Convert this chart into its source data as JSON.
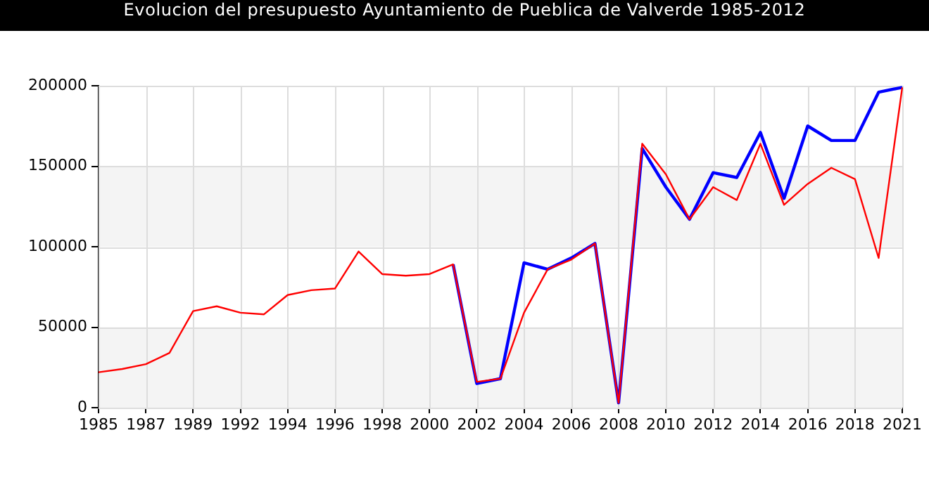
{
  "chart_data": {
    "type": "line",
    "title": "Evolucion del presupuesto Ayuntamiento de Pueblica de Valverde 1985-2012",
    "categories": [
      "1985",
      null,
      "1987",
      null,
      "1989",
      null,
      "1992",
      null,
      "1994",
      null,
      "1996",
      null,
      "1998",
      null,
      "2000",
      null,
      "2002",
      null,
      "2004",
      null,
      "2006",
      null,
      "2008",
      null,
      "2010",
      null,
      "2012",
      null,
      "2014",
      null,
      "2016",
      null,
      "2018",
      null,
      "2021"
    ],
    "series": [
      {
        "color": "#0000ff",
        "values": [
          null,
          null,
          null,
          null,
          null,
          null,
          null,
          null,
          null,
          null,
          null,
          null,
          null,
          null,
          null,
          89000,
          15000,
          18000,
          90000,
          86000,
          93000,
          102000,
          3000,
          161000,
          137000,
          117000,
          146000,
          143000,
          171000,
          130000,
          175000,
          166000,
          166000,
          196000,
          199000
        ]
      },
      {
        "color": "#ff0000",
        "values": [
          22000,
          24000,
          27000,
          34000,
          60000,
          63000,
          59000,
          58000,
          70000,
          73000,
          74000,
          97000,
          83000,
          82000,
          83000,
          89000,
          16000,
          18000,
          59000,
          86000,
          92000,
          102000,
          3000,
          164000,
          145000,
          117000,
          137000,
          129000,
          164000,
          126000,
          139000,
          149000,
          142000,
          93000,
          199000
        ]
      }
    ],
    "ylim": [
      0,
      200000
    ],
    "yticks": [
      0,
      50000,
      100000,
      150000,
      200000
    ],
    "grid": true,
    "legend": false,
    "marker": "none",
    "line_style": "solid"
  }
}
